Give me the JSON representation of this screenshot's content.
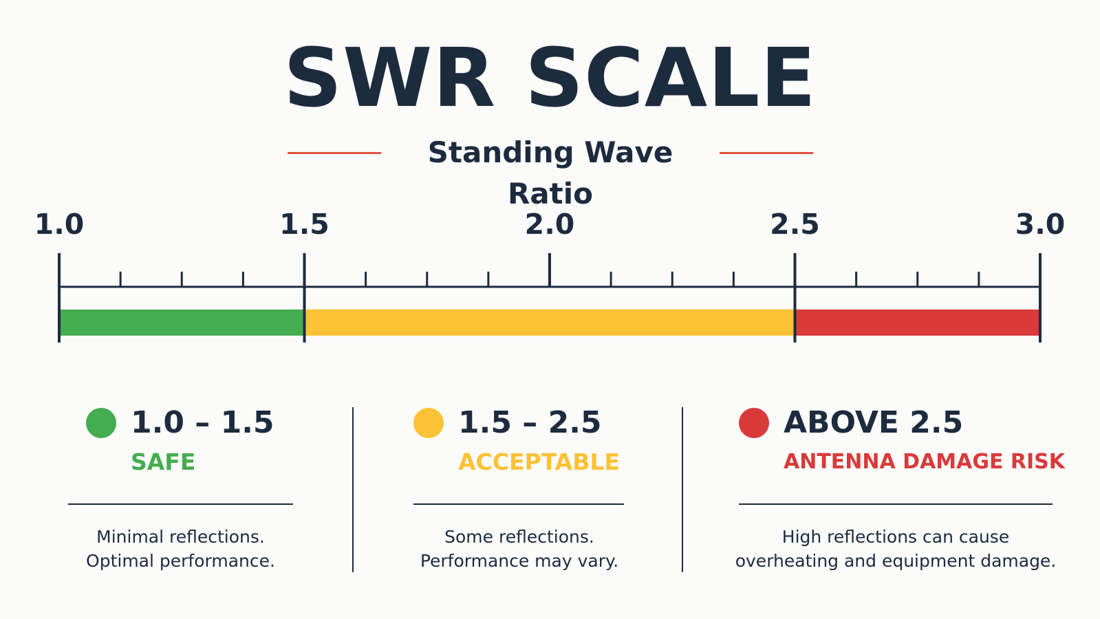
{
  "title": "SWR SCALE",
  "subtitle": "Standing Wave Ratio",
  "colors": {
    "ink": "#1d2b3f",
    "accent": "#e0533d",
    "safe": "#43ad4f",
    "acceptable": "#fbc236",
    "danger": "#d93a3a"
  },
  "chart_data": {
    "type": "bar",
    "orientation": "horizontal",
    "xlim": [
      1.0,
      3.0
    ],
    "major_ticks": [
      "1.0",
      "1.5",
      "2.0",
      "2.5",
      "3.0"
    ],
    "major_values": [
      1.0,
      1.5,
      2.0,
      2.5,
      3.0
    ],
    "minor_step": 0.125,
    "bands": [
      {
        "from": 1.0,
        "to": 1.5,
        "color": "#43ad4f"
      },
      {
        "from": 1.5,
        "to": 2.5,
        "color": "#fbc236"
      },
      {
        "from": 2.5,
        "to": 3.0,
        "color": "#d93a3a"
      }
    ]
  },
  "legend": [
    {
      "range": "1.0 – 1.5",
      "status": "SAFE",
      "color": "#43ad4f",
      "desc_line1": "Minimal reflections.",
      "desc_line2": "Optimal performance."
    },
    {
      "range": "1.5 – 2.5",
      "status": "ACCEPTABLE",
      "color": "#fbc236",
      "desc_line1": "Some reflections.",
      "desc_line2": "Performance may vary."
    },
    {
      "range": "ABOVE 2.5",
      "status": "ANTENNA DAMAGE RISK",
      "color": "#d93a3a",
      "desc_line1": "High reflections can cause",
      "desc_line2": "overheating and equipment damage."
    }
  ]
}
